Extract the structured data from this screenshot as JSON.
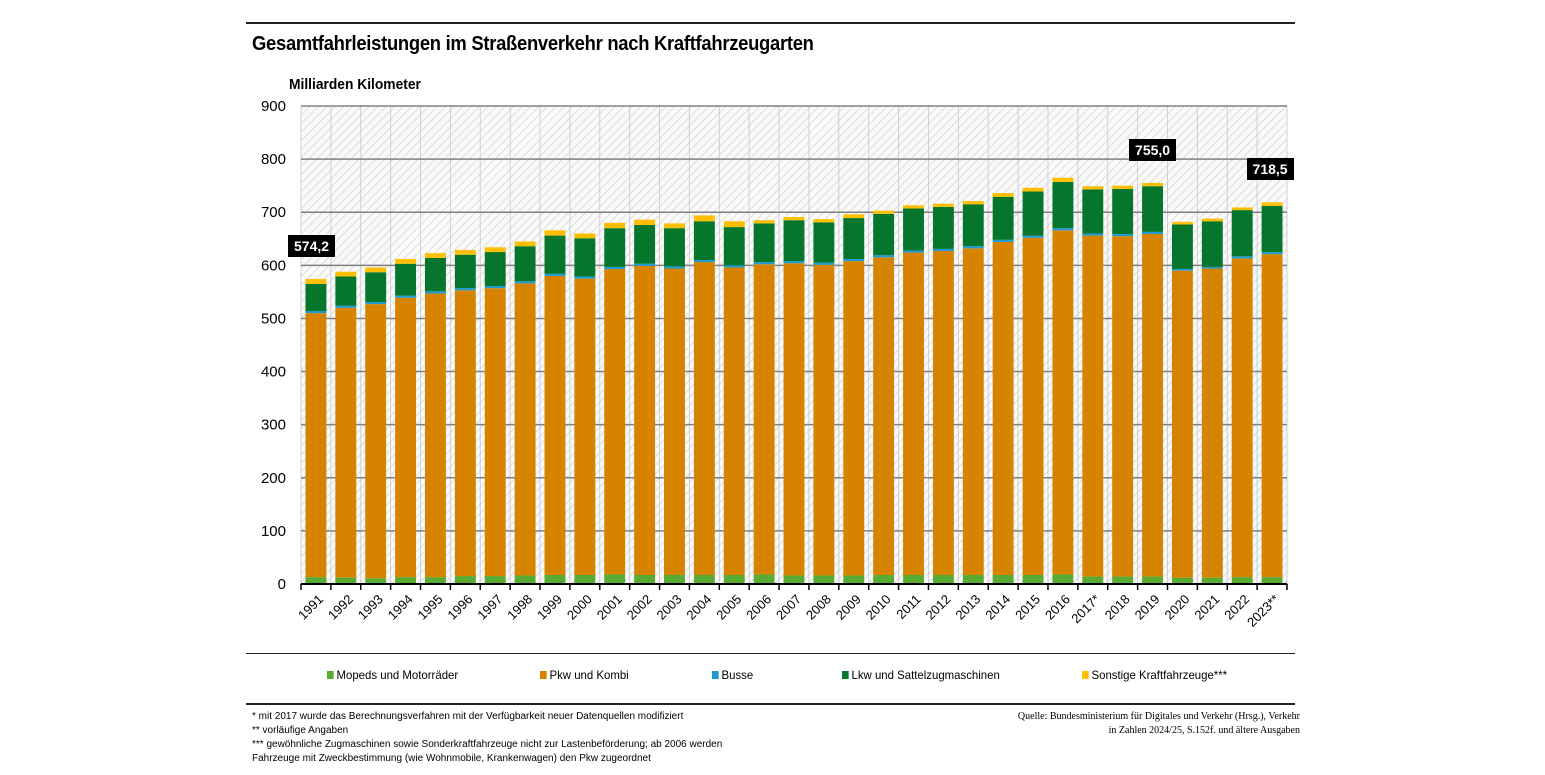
{
  "title": "Gesamtfahrleistungen im Straßenverkehr nach Kraftfahrzeugarten",
  "unit_label": "Milliarden Kilometer",
  "chart_data": {
    "type": "bar",
    "stacked": true,
    "title": "Gesamtfahrleistungen im Straßenverkehr nach Kraftfahrzeugarten",
    "ylabel": "Milliarden Kilometer",
    "xlabel": "",
    "ylim": [
      0,
      900
    ],
    "yticks": [
      0,
      100,
      200,
      300,
      400,
      500,
      600,
      700,
      800,
      900
    ],
    "grid": true,
    "legend_position": "bottom",
    "categories": [
      "1991",
      "1992",
      "1993",
      "1994",
      "1995",
      "1996",
      "1997",
      "1998",
      "1999",
      "2000",
      "2001",
      "2002",
      "2003",
      "2004",
      "2005",
      "2006",
      "2007",
      "2008",
      "2009",
      "2010",
      "2011",
      "2012",
      "2013",
      "2014",
      "2015",
      "2016",
      "2017*",
      "2018",
      "2019",
      "2020",
      "2021",
      "2022",
      "2023**"
    ],
    "series": [
      {
        "name": "Mopeds und Motorräder",
        "color": "#5aab33",
        "values": [
          13,
          12,
          11,
          13,
          13,
          15,
          15,
          16,
          17,
          17,
          18,
          17,
          17,
          17,
          17,
          18,
          16,
          16,
          16,
          17,
          17,
          17,
          17,
          17,
          17,
          18,
          14,
          14,
          14,
          12,
          12,
          13,
          13
        ]
      },
      {
        "name": "Pkw und Kombi",
        "color": "#d68400",
        "values": [
          497,
          508,
          516,
          526,
          534,
          538,
          542,
          550,
          563,
          558,
          575,
          582,
          577,
          589,
          579,
          584,
          588,
          585,
          592,
          598,
          607,
          610,
          615,
          627,
          635,
          648,
          642,
          641,
          645,
          578,
          582,
          600,
          608
        ]
      },
      {
        "name": "Busse",
        "color": "#1f9bd1",
        "values": [
          4,
          4,
          4,
          4,
          4,
          4,
          4,
          4,
          4,
          4,
          4,
          4,
          4,
          4,
          4,
          4,
          4,
          4,
          4,
          4,
          4,
          4,
          4,
          4,
          4,
          4,
          4,
          4,
          4,
          3,
          3,
          4,
          4
        ]
      },
      {
        "name": "Lkw und Sattelzugmaschinen",
        "color": "#06762c",
        "values": [
          51,
          55,
          56,
          60,
          63,
          63,
          64,
          66,
          72,
          72,
          73,
          73,
          72,
          73,
          72,
          73,
          77,
          76,
          77,
          78,
          79,
          79,
          79,
          81,
          83,
          87,
          83,
          85,
          86,
          84,
          86,
          87,
          87
        ]
      },
      {
        "name": "Sonstige Kraftfahrzeuge***",
        "color": "#ffbe00",
        "values": [
          9.2,
          9,
          9,
          9,
          9,
          9,
          9,
          9,
          10,
          9,
          10,
          10,
          9,
          11,
          11,
          6,
          6,
          6,
          7,
          6,
          6,
          6,
          6,
          7,
          7,
          8,
          6,
          6,
          6,
          5,
          5,
          5,
          6.5
        ]
      }
    ],
    "annotations": [
      {
        "category": "1991",
        "label": "574,2"
      },
      {
        "category": "2019",
        "label": "755,0"
      },
      {
        "category": "2023**",
        "label": "718,5"
      }
    ]
  },
  "legend": [
    {
      "label": "Mopeds und Motorräder",
      "color": "#5aab33"
    },
    {
      "label": "Pkw und Kombi",
      "color": "#d68400"
    },
    {
      "label": "Busse",
      "color": "#1f9bd1"
    },
    {
      "label": "Lkw und Sattelzugmaschinen",
      "color": "#06762c"
    },
    {
      "label": "Sonstige Kraftfahrzeuge***",
      "color": "#ffbe00"
    }
  ],
  "notes": [
    "* mit 2017 wurde das Berechnungsverfahren mit der Verfügbarkeit neuer Datenquellen modifiziert",
    "** vorläufige Angaben",
    "*** gewöhnliche Zugmaschinen sowie Sonderkraftfahrzeuge nicht zur Lastenbeförderung; ab 2006 werden",
    "Fahrzeuge mit Zweckbestimmung (wie Wohnmobile, Krankenwagen) den Pkw zugeordnet"
  ],
  "source": [
    "Quelle: Bundesministerium für Digitales und Verkehr (Hrsg.), Verkehr",
    "in Zahlen 2024/25, S.152f. und ältere Ausgaben"
  ]
}
